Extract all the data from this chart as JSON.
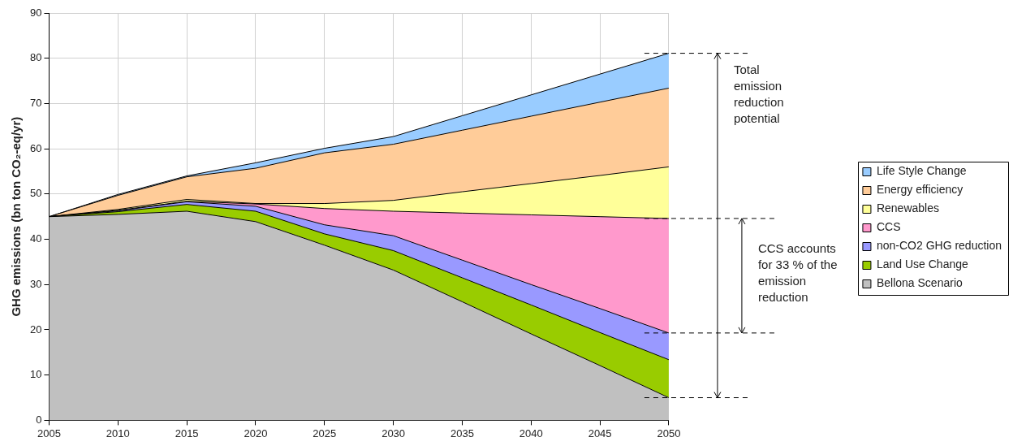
{
  "chart_data": {
    "type": "area",
    "stacked": true,
    "ylabel": "GHG emissions (bn ton CO₂-eq/yr)",
    "x": [
      2005,
      2010,
      2015,
      2020,
      2025,
      2030,
      2035,
      2040,
      2045,
      2050
    ],
    "xlim": [
      2005,
      2050
    ],
    "xticks": [
      2005,
      2010,
      2015,
      2020,
      2025,
      2030,
      2035,
      2040,
      2045,
      2050
    ],
    "ylim": [
      0,
      90
    ],
    "yticks": [
      0,
      10,
      20,
      30,
      40,
      50,
      60,
      70,
      80,
      90
    ],
    "grid": true,
    "legend": "right",
    "series": [
      {
        "name": "Bellona Scenario",
        "color": "#c0c0c0",
        "values": [
          45,
          45.5,
          46.2,
          43.9,
          38.7,
          33.2,
          26.2,
          19.1,
          12.1,
          5.0
        ]
      },
      {
        "name": "Land Use Change",
        "color": "#99cc00",
        "values": [
          0,
          0.6,
          1.5,
          2.3,
          2.5,
          4.3,
          5.3,
          6.4,
          7.3,
          8.4
        ]
      },
      {
        "name": "non-CO2 GHG reduction",
        "color": "#9999ff",
        "values": [
          0,
          0.2,
          0.6,
          1.1,
          2.0,
          3.3,
          3.9,
          4.5,
          5.3,
          5.9
        ]
      },
      {
        "name": "CCS",
        "color": "#ff99cc",
        "values": [
          0,
          0.1,
          0.1,
          0.5,
          3.6,
          5.4,
          10.4,
          15.4,
          20.3,
          25.3
        ]
      },
      {
        "name": "Renewables",
        "color": "#ffff99",
        "values": [
          0,
          0.2,
          0.4,
          0.1,
          1.1,
          2.4,
          4.7,
          6.9,
          9.1,
          11.4
        ]
      },
      {
        "name": "Energy efficiency",
        "color": "#ffcc99",
        "values": [
          0,
          3.1,
          5.0,
          7.8,
          11.2,
          12.4,
          13.6,
          14.9,
          16.2,
          17.4
        ]
      },
      {
        "name": "Life Style Change",
        "color": "#99ccff",
        "values": [
          0,
          0.2,
          0.2,
          1.2,
          1.0,
          1.7,
          3.2,
          4.7,
          6.2,
          7.7
        ]
      }
    ],
    "annotations": [
      "Total emission reduction potential",
      "CCS accounts for 33 % of the emission reduction"
    ]
  }
}
